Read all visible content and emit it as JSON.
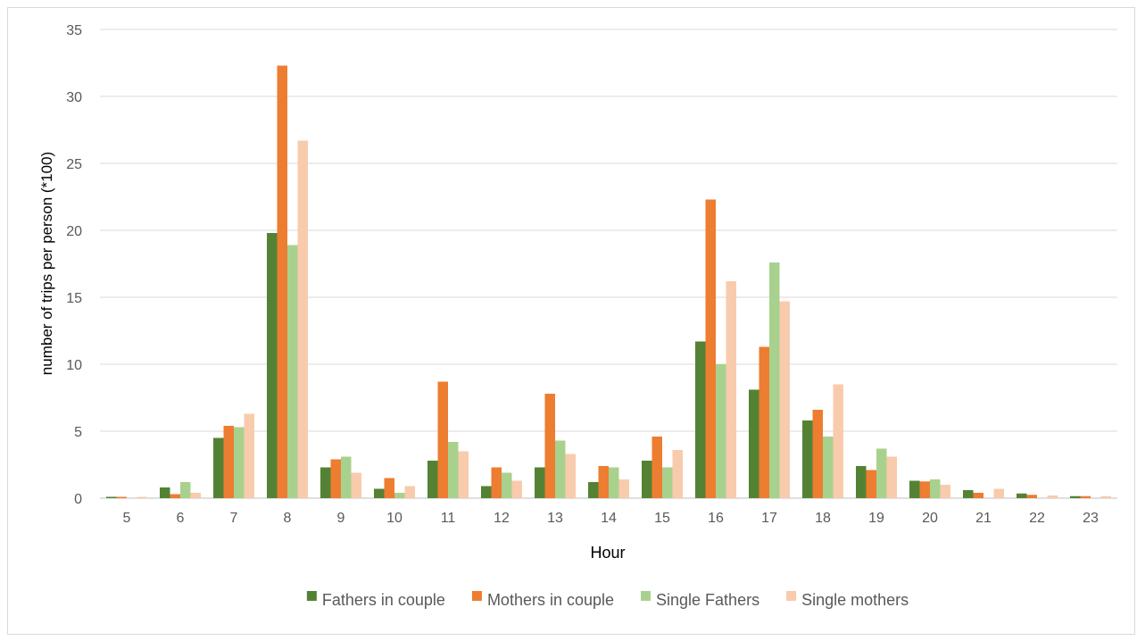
{
  "chart_data": {
    "type": "bar",
    "xlabel": "Hour",
    "ylabel": "number of trips per person (*100)",
    "ylim": [
      0,
      35
    ],
    "yticks": [
      0,
      5,
      10,
      15,
      20,
      25,
      30,
      35
    ],
    "grid": true,
    "legend_position": "bottom",
    "categories": [
      "5",
      "6",
      "7",
      "8",
      "9",
      "10",
      "11",
      "12",
      "13",
      "14",
      "15",
      "16",
      "17",
      "18",
      "19",
      "20",
      "21",
      "22",
      "23"
    ],
    "series": [
      {
        "name": "Fathers in couple",
        "color": "#548235",
        "values": [
          0.1,
          0.8,
          4.5,
          19.8,
          2.3,
          0.7,
          2.8,
          0.9,
          2.3,
          1.2,
          2.8,
          11.7,
          8.1,
          5.8,
          2.4,
          1.3,
          0.6,
          0.35,
          0.15
        ]
      },
      {
        "name": "Mothers in couple",
        "color": "#ED7D31",
        "values": [
          0.1,
          0.3,
          5.4,
          32.3,
          2.9,
          1.5,
          8.7,
          2.3,
          7.8,
          2.4,
          4.6,
          22.3,
          11.3,
          6.6,
          2.1,
          1.25,
          0.4,
          0.25,
          0.15
        ]
      },
      {
        "name": "Single Fathers",
        "color": "#A9D18E",
        "values": [
          0,
          1.2,
          5.3,
          18.9,
          3.1,
          0.4,
          4.2,
          1.9,
          4.3,
          2.3,
          2.3,
          10.0,
          17.6,
          4.6,
          3.7,
          1.4,
          0,
          0,
          0
        ]
      },
      {
        "name": "Single mothers",
        "color": "#F8CBAD",
        "values": [
          0.1,
          0.4,
          6.3,
          26.7,
          1.9,
          0.9,
          3.5,
          1.3,
          3.3,
          1.4,
          3.6,
          16.2,
          14.7,
          8.5,
          3.1,
          1.0,
          0.7,
          0.2,
          0.15
        ]
      }
    ]
  }
}
